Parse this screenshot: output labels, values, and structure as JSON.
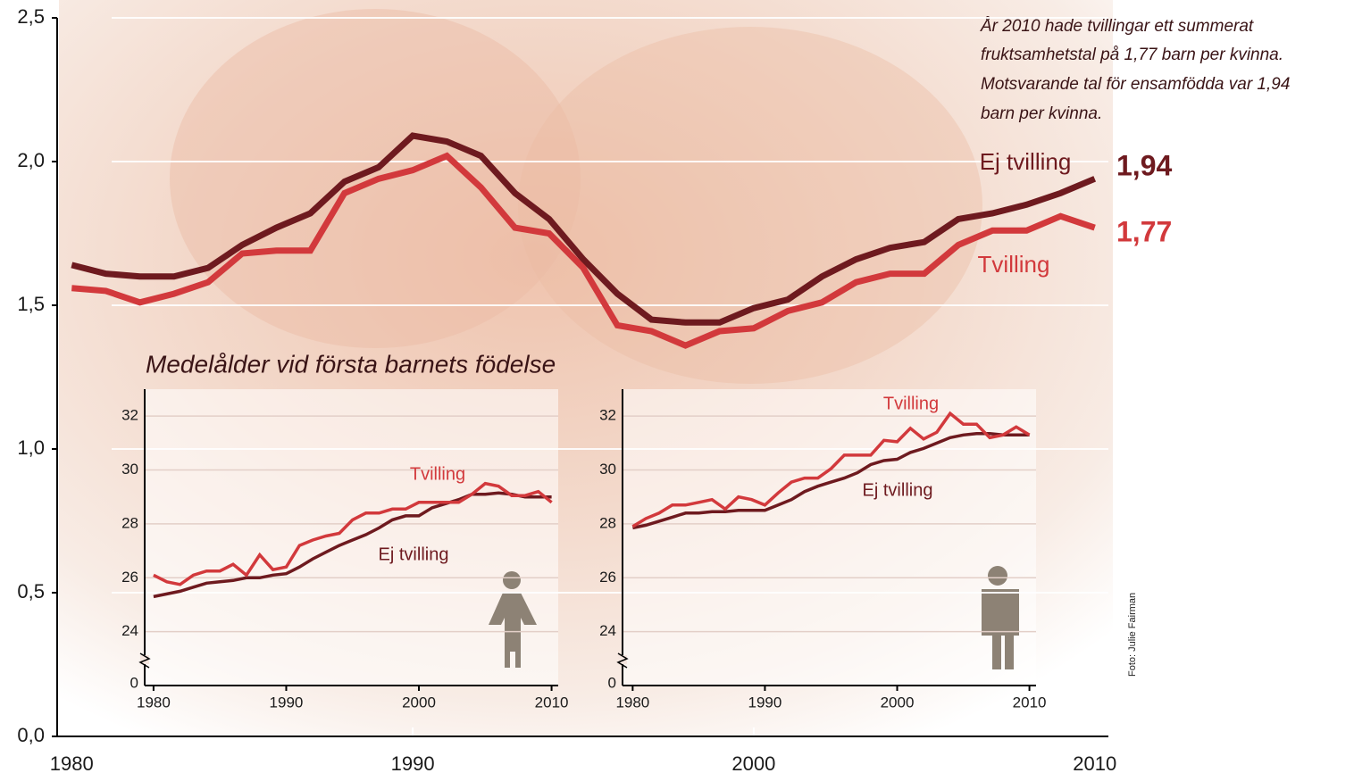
{
  "chart_data": [
    {
      "type": "line",
      "annotation": [
        "År 2010 hade tvillingar ett summerat",
        "fruktsamhetstal på 1,77 barn per kvinna.",
        "Motsvarande tal för ensamfödda var 1,94",
        "barn per kvinna."
      ],
      "credit": "Foto: Julie Fairman",
      "x": [
        1980,
        1981,
        1982,
        1983,
        1984,
        1985,
        1986,
        1987,
        1988,
        1989,
        1990,
        1991,
        1992,
        1993,
        1994,
        1995,
        1996,
        1997,
        1998,
        1999,
        2000,
        2001,
        2002,
        2003,
        2004,
        2005,
        2006,
        2007,
        2008,
        2009,
        2010
      ],
      "series": [
        {
          "name": "Ej tvilling",
          "color": "#6e1a1f",
          "end_label": "1,94",
          "values": [
            1.64,
            1.61,
            1.6,
            1.6,
            1.63,
            1.71,
            1.77,
            1.82,
            1.93,
            1.98,
            2.09,
            2.07,
            2.02,
            1.89,
            1.8,
            1.66,
            1.54,
            1.45,
            1.44,
            1.44,
            1.49,
            1.52,
            1.6,
            1.66,
            1.7,
            1.72,
            1.8,
            1.82,
            1.85,
            1.89,
            1.94
          ]
        },
        {
          "name": "Tvilling",
          "color": "#d2393c",
          "end_label": "1,77",
          "values": [
            1.56,
            1.55,
            1.51,
            1.54,
            1.58,
            1.68,
            1.69,
            1.69,
            1.89,
            1.94,
            1.97,
            2.02,
            1.91,
            1.77,
            1.75,
            1.63,
            1.43,
            1.41,
            1.36,
            1.41,
            1.42,
            1.48,
            1.51,
            1.58,
            1.61,
            1.61,
            1.71,
            1.76,
            1.76,
            1.81,
            1.77
          ]
        }
      ],
      "xlim": [
        1979.6,
        2010.4
      ],
      "xticks": [
        1980,
        1990,
        2000,
        2010
      ],
      "ylim": [
        0,
        2.5
      ],
      "yticks": [
        {
          "value": 0,
          "label": "0,0"
        },
        {
          "value": 0.5,
          "label": "0,5"
        },
        {
          "value": 1,
          "label": "1,0"
        },
        {
          "value": 1.5,
          "label": "1,5"
        },
        {
          "value": 2,
          "label": "2,0"
        },
        {
          "value": 2.5,
          "label": "2,5"
        }
      ],
      "grid": true
    },
    {
      "type": "line",
      "title": "Medelålder vid första barnets födelse",
      "axis_break_label": "0",
      "x": [
        1980,
        1981,
        1982,
        1983,
        1984,
        1985,
        1986,
        1987,
        1988,
        1989,
        1990,
        1991,
        1992,
        1993,
        1994,
        1995,
        1996,
        1997,
        1998,
        1999,
        2000,
        2001,
        2002,
        2003,
        2004,
        2005,
        2006,
        2007,
        2008,
        2009,
        2010
      ],
      "series": [
        {
          "name": "Ej tvilling",
          "color": "#6e1a1f",
          "values": [
            25.3,
            25.4,
            25.5,
            25.65,
            25.8,
            25.85,
            25.9,
            26.0,
            26.0,
            26.1,
            26.15,
            26.4,
            26.7,
            26.95,
            27.2,
            27.4,
            27.6,
            27.85,
            28.15,
            28.3,
            28.3,
            28.6,
            28.75,
            28.9,
            29.1,
            29.1,
            29.15,
            29.1,
            29.0,
            29.0,
            29.0
          ]
        },
        {
          "name": "Tvilling",
          "color": "#d2393c",
          "values": [
            26.1,
            25.85,
            25.75,
            26.1,
            26.25,
            26.25,
            26.5,
            26.1,
            26.85,
            26.3,
            26.4,
            27.2,
            27.4,
            27.55,
            27.65,
            28.15,
            28.4,
            28.4,
            28.55,
            28.55,
            28.8,
            28.8,
            28.8,
            28.8,
            29.1,
            29.5,
            29.4,
            29.05,
            29.05,
            29.2,
            28.8
          ]
        }
      ],
      "xlim": [
        1979.4,
        2010.5
      ],
      "xticks": [
        1980,
        1990,
        2000,
        2010
      ],
      "ylim": [
        22,
        33
      ],
      "yticks": [
        24,
        26,
        28,
        30,
        32
      ],
      "grid": true
    },
    {
      "type": "line",
      "axis_break_label": "0",
      "x": [
        1980,
        1981,
        1982,
        1983,
        1984,
        1985,
        1986,
        1987,
        1988,
        1989,
        1990,
        1991,
        1992,
        1993,
        1994,
        1995,
        1996,
        1997,
        1998,
        1999,
        2000,
        2001,
        2002,
        2003,
        2004,
        2005,
        2006,
        2007,
        2008,
        2009,
        2010
      ],
      "series": [
        {
          "name": "Ej tvilling",
          "color": "#6e1a1f",
          "values": [
            27.85,
            27.95,
            28.1,
            28.25,
            28.4,
            28.4,
            28.45,
            28.45,
            28.5,
            28.5,
            28.5,
            28.7,
            28.9,
            29.2,
            29.4,
            29.55,
            29.7,
            29.9,
            30.2,
            30.35,
            30.4,
            30.65,
            30.8,
            31.0,
            31.2,
            31.3,
            31.35,
            31.35,
            31.3,
            31.3,
            31.3
          ]
        },
        {
          "name": "Tvilling",
          "color": "#d2393c",
          "values": [
            27.9,
            28.2,
            28.4,
            28.7,
            28.7,
            28.8,
            28.9,
            28.55,
            29.0,
            28.9,
            28.7,
            29.15,
            29.55,
            29.7,
            29.7,
            30.05,
            30.55,
            30.55,
            30.55,
            31.1,
            31.05,
            31.55,
            31.15,
            31.4,
            32.1,
            31.7,
            31.7,
            31.2,
            31.3,
            31.6,
            31.3
          ]
        }
      ],
      "xlim": [
        1979.3,
        2010.5
      ],
      "xticks": [
        1980,
        1990,
        2000,
        2010
      ],
      "ylim": [
        22,
        33
      ],
      "yticks": [
        24,
        26,
        28,
        30,
        32
      ],
      "grid": true
    }
  ]
}
